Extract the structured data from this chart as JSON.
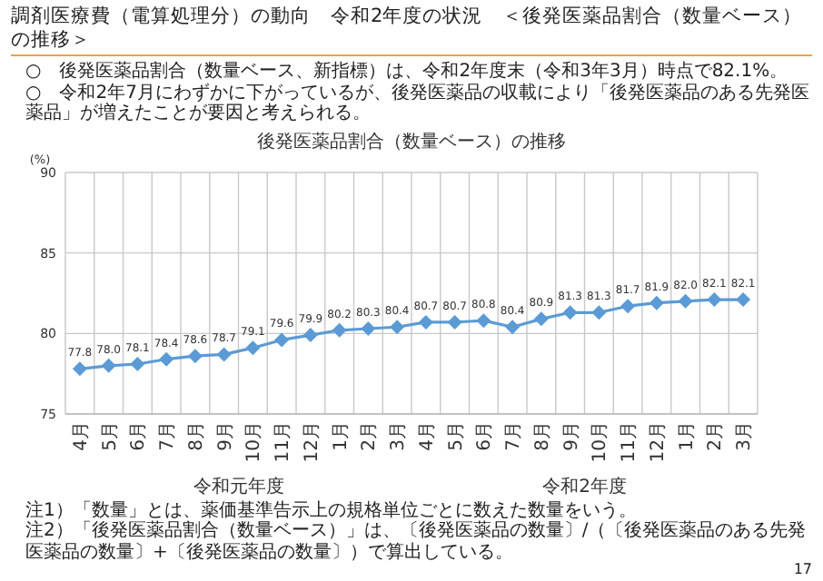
{
  "chart_data": {
    "type": "line",
    "title": "調剤医療費（電算処理分）の動向　令和2年度の状況　＜後発医薬品割合（数量ベース）の推移＞",
    "subtitle": "後発医薬品割合（数量ベース）の推移",
    "ylabel": "(%)",
    "categories": [
      "4月",
      "5月",
      "6月",
      "7月",
      "8月",
      "9月",
      "10月",
      "11月",
      "12月",
      "1月",
      "2月",
      "3月",
      "4月",
      "5月",
      "6月",
      "7月",
      "8月",
      "9月",
      "10月",
      "11月",
      "12月",
      "1月",
      "2月",
      "3月"
    ],
    "series": [
      {
        "color": "#5b9bd5",
        "values": [
          77.8,
          78.0,
          78.1,
          78.4,
          78.6,
          78.7,
          79.1,
          79.6,
          79.9,
          80.2,
          80.3,
          80.4,
          80.7,
          80.7,
          80.8,
          80.4,
          80.9,
          81.3,
          81.3,
          81.7,
          81.9,
          82.0,
          82.1,
          82.1
        ],
        "value_labels": [
          "77.8",
          "78.0",
          "78.1",
          "78.4",
          "78.6",
          "78.7",
          "79.1",
          "79.6",
          "79.9",
          "80.2",
          "80.3",
          "80.4",
          "80.7",
          "80.7",
          "80.8",
          "80.4",
          "80.9",
          "81.3",
          "81.3",
          "81.7",
          "81.9",
          "82.0",
          "82.1",
          "82.1"
        ]
      }
    ],
    "ylim": [
      75,
      90
    ],
    "yticks": [
      75,
      80,
      85,
      90
    ],
    "grid": true,
    "marker": "diamond",
    "annotations": [
      "○　後発医薬品割合（数量ベース、新指標）は、令和2年度末（令和3年3月）時点で82.1%。",
      "○　令和2年7月にわずかに下がっているが、後発医薬品の収載により「後発医薬品のある先発医薬品」が増えたことが要因と考えられる。",
      "令和元年度",
      "令和2年度",
      "注1）「数量」とは、薬価基準告示上の規格単位ごとに数えた数量をいう。",
      "注2）「後発医薬品割合（数量ベース）」は、〔後発医薬品の数量〕/（〔後発医薬品のある先発医薬品の数量〕+〔後発医薬品の数量〕）で算出している。",
      "17"
    ]
  }
}
